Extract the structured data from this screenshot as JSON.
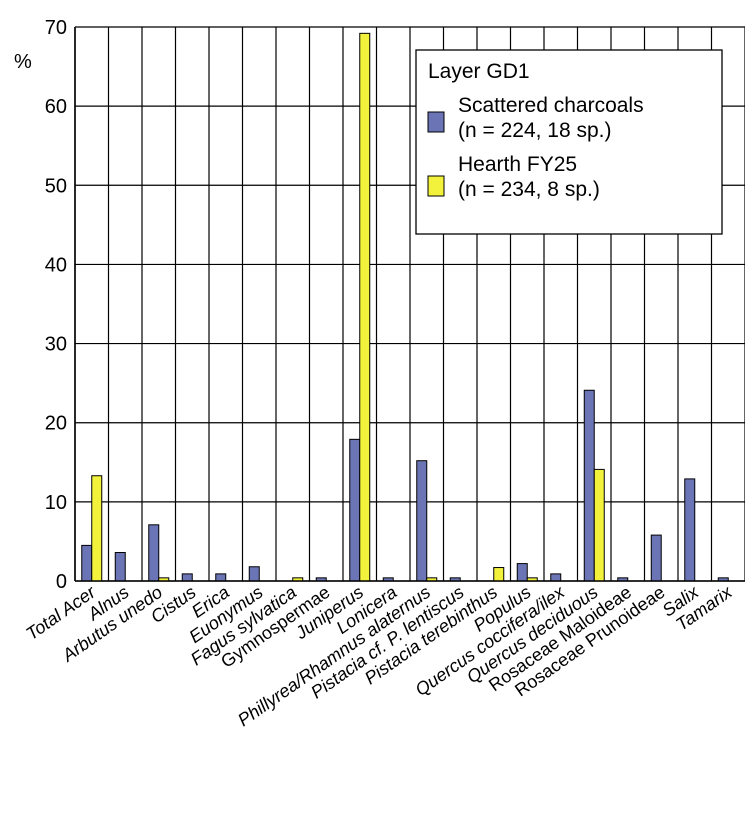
{
  "chart_data": {
    "type": "bar",
    "title": "",
    "xlabel": "",
    "ylabel": "%",
    "ylim": [
      0,
      70
    ],
    "yticks": [
      0,
      10,
      20,
      30,
      40,
      50,
      60,
      70
    ],
    "grid": "vertical and horizontal",
    "legend_placement": "top-right",
    "legend_title": "Layer GD1",
    "categories": [
      "Total Acer",
      "Alnus",
      "Arbutus unedo",
      "Cistus",
      "Erica",
      "Euonymus",
      "Fagus sylvatica",
      "Gymnospermae",
      "Juniperus",
      "Lonicera",
      "Phillyrea/Rhamnus alaternus",
      "Pistacia cf. P. lentiscus",
      "Pistacia terebinthus",
      "Populus",
      "Quercus coccifera/ilex",
      "Quercus deciduous",
      "Rosaceae Maloideae",
      "Rosaceae Prunoideae",
      "Salix",
      "Tamarix"
    ],
    "italic_categories": [
      true,
      true,
      true,
      true,
      true,
      true,
      true,
      false,
      true,
      true,
      true,
      true,
      true,
      true,
      true,
      true,
      false,
      false,
      true,
      true
    ],
    "series": [
      {
        "name": "Scattered charcoals",
        "subtitle": "(n = 224, 18 sp.)",
        "color": "#6b75b5",
        "values": [
          4.5,
          3.6,
          7.1,
          0.9,
          0.9,
          1.8,
          0,
          0.4,
          17.9,
          0.4,
          15.2,
          0.4,
          0,
          2.2,
          0.9,
          24.1,
          0.4,
          5.8,
          12.9,
          0.4
        ]
      },
      {
        "name": "Hearth FY25",
        "subtitle": "(n = 234, 8 sp.)",
        "color": "#f2f23c",
        "values": [
          13.3,
          0,
          0.4,
          0,
          0,
          0,
          0.4,
          0,
          69.2,
          0,
          0.4,
          0,
          1.7,
          0.4,
          0,
          14.1,
          0,
          0,
          0,
          0
        ]
      }
    ]
  }
}
